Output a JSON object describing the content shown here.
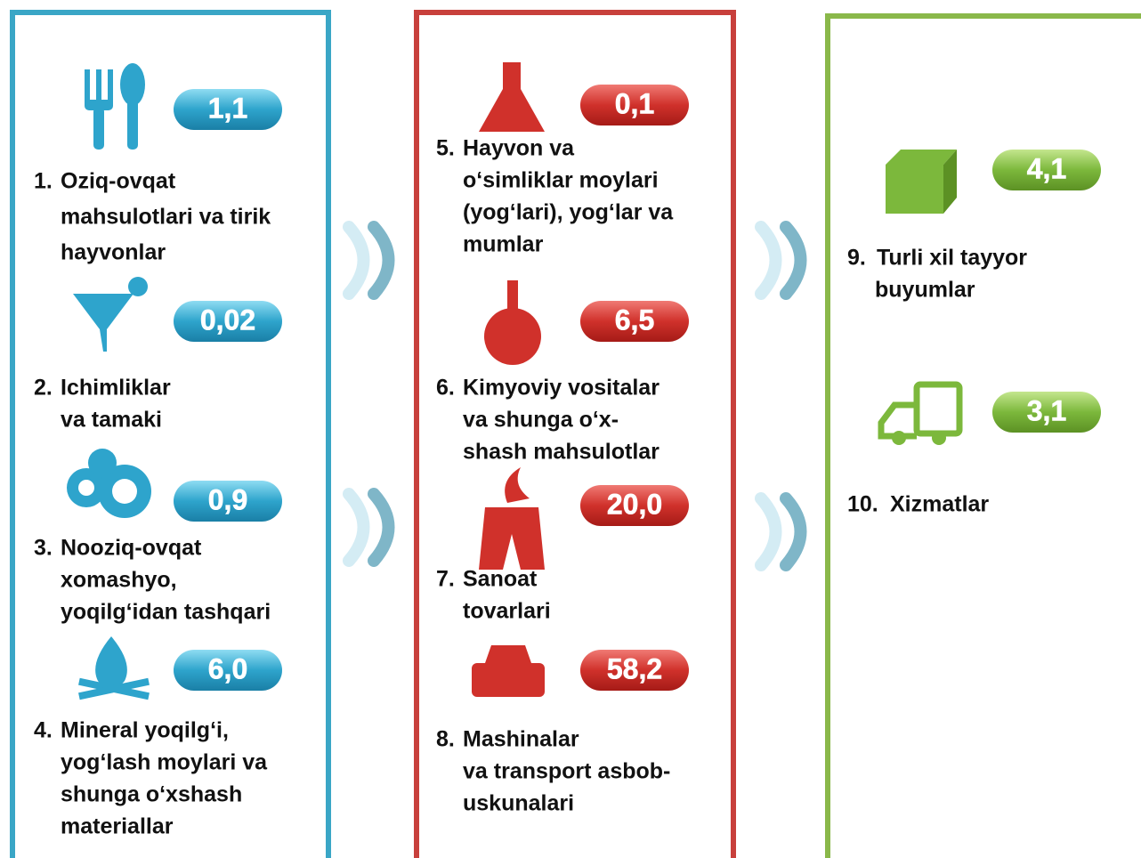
{
  "columns": [
    {
      "items": [
        {
          "number": "1.",
          "lines": [
            "Oziq-ovqat",
            "mahsulotlari va tirik",
            "hayvonlar"
          ],
          "value": "1,1"
        },
        {
          "number": "2.",
          "lines": [
            "Ichimliklar",
            "va tamaki"
          ],
          "value": "0,02"
        },
        {
          "number": "3.",
          "lines": [
            "Nooziq-ovqat",
            "xomashyo,",
            "yoqilg‘idan tashqari"
          ],
          "value": "0,9"
        },
        {
          "number": "4.",
          "lines": [
            "Mineral yoqilg‘i,",
            "yog‘lash moylari va",
            "shunga o‘xshash",
            "materiallar"
          ],
          "value": "6,0"
        }
      ]
    },
    {
      "items": [
        {
          "number": "5.",
          "lines": [
            "Hayvon va",
            "o‘simliklar moylari",
            "(yog‘lari), yog‘lar va",
            "mumlar"
          ],
          "value": "0,1"
        },
        {
          "number": "6.",
          "lines": [
            "Kimyoviy vositalar",
            "va shunga o‘x-",
            "shash mahsulotlar"
          ],
          "value": "6,5"
        },
        {
          "number": "7.",
          "lines": [
            "Sanoat",
            "tovarlari"
          ],
          "value": "20,0"
        },
        {
          "number": "8.",
          "lines": [
            "Mashinalar",
            "va transport asbob-",
            "uskunalari"
          ],
          "value": "58,2"
        }
      ]
    },
    {
      "items": [
        {
          "number": "9.",
          "lines": [
            "Turli xil tayyor",
            "buyumlar"
          ],
          "value": "4,1"
        },
        {
          "number": "10.",
          "lines": [
            "Xizmatlar"
          ],
          "value": "3,1"
        }
      ]
    }
  ]
}
